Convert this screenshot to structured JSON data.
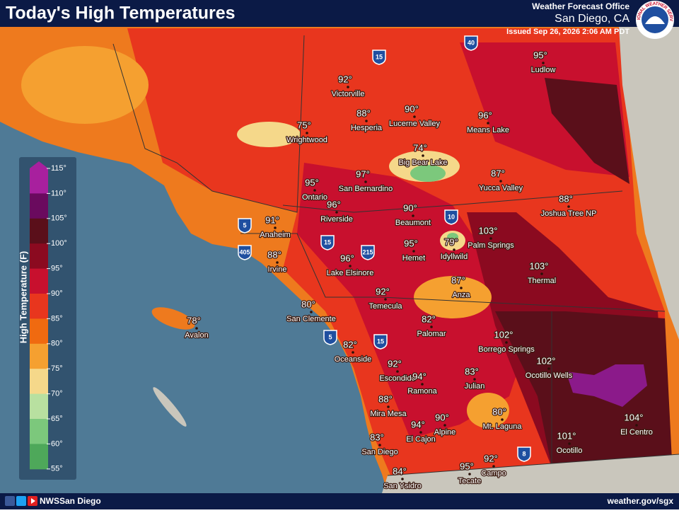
{
  "header": {
    "title": "Today's High Temperatures",
    "office_label": "Weather Forecast Office",
    "office": "San Diego, CA",
    "issued": "Issued Sep 26, 2026 2:06 AM PDT",
    "logo_text": "NATIONAL WEATHER SERVICE"
  },
  "legend": {
    "title": "High Temperature (F)",
    "ticks": [
      "115°",
      "110°",
      "105°",
      "100°",
      "95°",
      "90°",
      "85°",
      "80°",
      "75°",
      "70°",
      "65°",
      "60°",
      "55°"
    ]
  },
  "cities": [
    {
      "name": "Ludlow",
      "temp": "95°"
    },
    {
      "name": "Victorville",
      "temp": "92°"
    },
    {
      "name": "Hesperia",
      "temp": "88°"
    },
    {
      "name": "Lucerne Valley",
      "temp": "90°"
    },
    {
      "name": "Means Lake",
      "temp": "96°"
    },
    {
      "name": "Wrightwood",
      "temp": "75°"
    },
    {
      "name": "Big Bear Lake",
      "temp": "74°"
    },
    {
      "name": "San Bernardino",
      "temp": "97°"
    },
    {
      "name": "Ontario",
      "temp": "95°"
    },
    {
      "name": "Yucca Valley",
      "temp": "87°"
    },
    {
      "name": "Joshua Tree NP",
      "temp": "88°"
    },
    {
      "name": "Riverside",
      "temp": "96°"
    },
    {
      "name": "Beaumont",
      "temp": "90°"
    },
    {
      "name": "Anaheim",
      "temp": "91°"
    },
    {
      "name": "Palm Springs",
      "temp": "103°"
    },
    {
      "name": "Hemet",
      "temp": "95°"
    },
    {
      "name": "Idyllwild",
      "temp": "79°"
    },
    {
      "name": "Irvine",
      "temp": "88°"
    },
    {
      "name": "Lake Elsinore",
      "temp": "96°"
    },
    {
      "name": "Thermal",
      "temp": "103°"
    },
    {
      "name": "Anza",
      "temp": "87°"
    },
    {
      "name": "Temecula",
      "temp": "92°"
    },
    {
      "name": "San Clemente",
      "temp": "80°"
    },
    {
      "name": "Avalon",
      "temp": "78°"
    },
    {
      "name": "Palomar",
      "temp": "82°"
    },
    {
      "name": "Borrego Springs",
      "temp": "102°"
    },
    {
      "name": "Oceanside",
      "temp": "82°"
    },
    {
      "name": "Ocotillo Wells",
      "temp": "102°"
    },
    {
      "name": "Escondido",
      "temp": "92°"
    },
    {
      "name": "Ramona",
      "temp": "94°"
    },
    {
      "name": "Julian",
      "temp": "83°"
    },
    {
      "name": "Mira Mesa",
      "temp": "88°"
    },
    {
      "name": "Mt. Laguna",
      "temp": "80°"
    },
    {
      "name": "Alpine",
      "temp": "90°"
    },
    {
      "name": "El Cajon",
      "temp": "94°"
    },
    {
      "name": "El Centro",
      "temp": "104°"
    },
    {
      "name": "San Diego",
      "temp": "83°"
    },
    {
      "name": "Ocotillo",
      "temp": "101°"
    },
    {
      "name": "Campo",
      "temp": "92°"
    },
    {
      "name": "Tecate",
      "temp": "95°"
    },
    {
      "name": "San Ysidro",
      "temp": "84°"
    }
  ],
  "highways": [
    "15",
    "40",
    "5",
    "405",
    "15",
    "215",
    "10",
    "5",
    "15",
    "8"
  ],
  "footer": {
    "social": "NWSSan Diego",
    "url": "weather.gov/sgx"
  }
}
